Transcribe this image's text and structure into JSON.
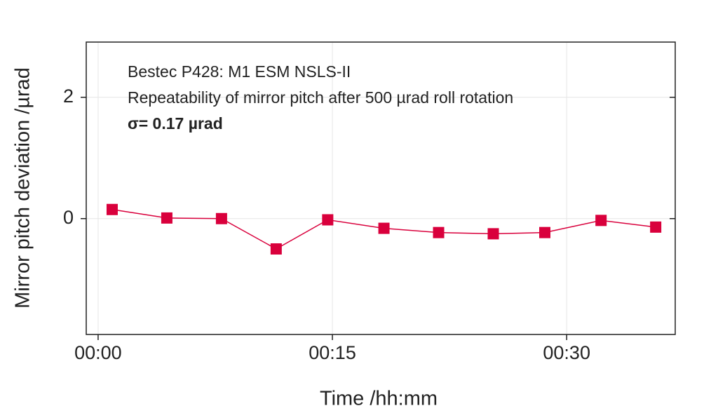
{
  "chart_data": {
    "type": "line",
    "x_label": "Time /hh:mm",
    "y_label": "Mirror pitch deviation /µrad",
    "annotations": [
      "Bestec P428: M1 ESM NSLS-II",
      "Repeatability of mirror pitch after 500 µrad roll rotation",
      "σ= 0.17 µrad"
    ],
    "x": [
      0.9,
      4.4,
      7.9,
      11.4,
      14.7,
      18.3,
      21.8,
      25.3,
      28.6,
      32.2,
      35.7
    ],
    "series": [
      {
        "color": "#d9003c",
        "values": [
          0.15,
          0.01,
          0,
          -0.5,
          -0.02,
          -0.16,
          -0.23,
          -0.25,
          -0.23,
          -0.03,
          -0.14
        ]
      }
    ],
    "xlim": [
      -0.76,
      36.95
    ],
    "ylim": [
      -1.91,
      2.91
    ],
    "xticks": [
      {
        "value": 0,
        "label": "00:00"
      },
      {
        "value": 15,
        "label": "00:15"
      },
      {
        "value": 30,
        "label": "00:30"
      }
    ],
    "yticks": [
      0,
      2
    ],
    "grid": true
  }
}
